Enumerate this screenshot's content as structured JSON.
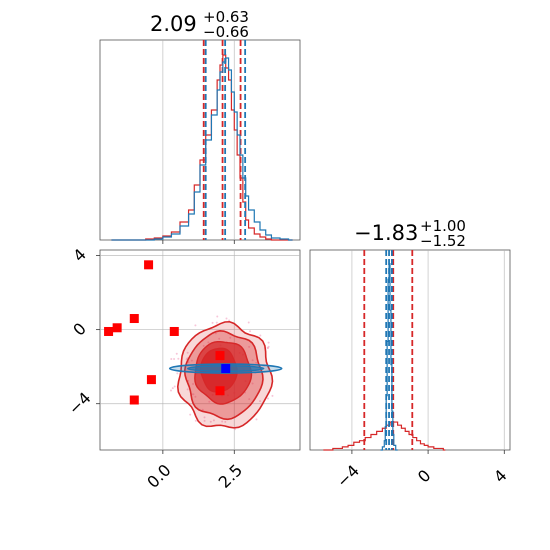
{
  "colors": {
    "red": "#d62728",
    "blue": "#1f77b4",
    "blue_marker": "#0000ff",
    "red_marker": "#ff0000"
  },
  "chart_data": [
    {
      "type": "histogram",
      "panel": "x1-marginal",
      "title_value": "2.09",
      "title_upper": "+0.63",
      "title_lower": "−0.66",
      "xlim": [
        -2.2,
        4.8
      ],
      "series": [
        {
          "name": "",
          "color": "red",
          "quantiles": [
            1.43,
            2.09,
            2.72
          ],
          "x": [
            -1.8,
            -1.5,
            -1.2,
            -0.9,
            -0.6,
            -0.3,
            0.0,
            0.3,
            0.6,
            0.9,
            1.1,
            1.3,
            1.5,
            1.7,
            1.9,
            2.0,
            2.1,
            2.2,
            2.3,
            2.4,
            2.5,
            2.6,
            2.7,
            2.8,
            2.9,
            3.0,
            3.2,
            3.4,
            3.6,
            3.8,
            4.1,
            4.4
          ],
          "values": [
            0,
            0,
            0,
            0,
            1,
            2,
            4,
            8,
            18,
            30,
            55,
            80,
            105,
            130,
            160,
            175,
            185,
            172,
            160,
            130,
            110,
            85,
            62,
            38,
            20,
            12,
            6,
            3,
            1,
            0,
            0,
            0
          ]
        },
        {
          "name": "",
          "color": "blue",
          "quantiles": [
            1.5,
            2.18,
            2.88
          ],
          "x": [
            -1.8,
            -1.5,
            -1.2,
            -0.9,
            -0.6,
            -0.3,
            0.0,
            0.3,
            0.6,
            0.9,
            1.1,
            1.3,
            1.5,
            1.7,
            1.9,
            2.0,
            2.1,
            2.2,
            2.3,
            2.4,
            2.5,
            2.6,
            2.7,
            2.8,
            2.9,
            3.0,
            3.2,
            3.4,
            3.6,
            3.8,
            4.1,
            4.4
          ],
          "values": [
            0,
            0,
            0,
            0,
            0,
            1,
            3,
            6,
            14,
            26,
            48,
            75,
            100,
            125,
            150,
            168,
            178,
            182,
            170,
            148,
            128,
            105,
            85,
            62,
            44,
            30,
            18,
            10,
            5,
            2,
            1,
            0
          ]
        }
      ],
      "xticks": [
        0.0,
        2.5
      ],
      "yticks": []
    },
    {
      "type": "scatter",
      "panel": "x1-x2-joint",
      "xlim": [
        -2.2,
        4.8
      ],
      "ylim": [
        -6.5,
        4.3
      ],
      "xticks": [
        0.0,
        2.5
      ],
      "xtick_labels": [
        "0.0",
        "2.5"
      ],
      "yticks": [
        -4,
        0,
        4
      ],
      "ytick_labels": [
        "−4",
        "0",
        "4"
      ],
      "red_squares": [
        {
          "x": -1.9,
          "y": -0.1
        },
        {
          "x": -1.6,
          "y": 0.1
        },
        {
          "x": -1.0,
          "y": 0.6
        },
        {
          "x": -0.5,
          "y": 3.5
        },
        {
          "x": -0.4,
          "y": -2.7
        },
        {
          "x": -1.0,
          "y": -3.8
        },
        {
          "x": 0.4,
          "y": -0.1
        },
        {
          "x": 2.0,
          "y": -1.4
        },
        {
          "x": 2.0,
          "y": -3.3
        }
      ],
      "blue_square": {
        "x": 2.2,
        "y": -2.1
      },
      "red_contour_center": {
        "x": 2.1,
        "y": -2.4
      },
      "blue_contour_center": {
        "x": 2.2,
        "y": -2.1
      }
    },
    {
      "type": "histogram",
      "panel": "x2-marginal",
      "title_value": "−1.83",
      "title_upper": "+1.00",
      "title_lower": "−1.52",
      "xlim": [
        -6.2,
        4.3
      ],
      "xticks": [
        -4,
        0,
        4
      ],
      "xtick_labels": [
        "−4",
        "0",
        "4"
      ],
      "series": [
        {
          "name": "",
          "color": "red",
          "quantiles": [
            -3.35,
            -1.83,
            -0.83
          ],
          "x": [
            -5.5,
            -5.0,
            -4.5,
            -4.2,
            -3.9,
            -3.6,
            -3.3,
            -3.0,
            -2.7,
            -2.4,
            -2.2,
            -2.0,
            -1.8,
            -1.6,
            -1.4,
            -1.2,
            -1.0,
            -0.8,
            -0.6,
            -0.4,
            -0.2,
            0.0,
            0.3,
            0.8
          ],
          "values": [
            0,
            1,
            2,
            3,
            5,
            6,
            8,
            10,
            12,
            14,
            16,
            18,
            18,
            16,
            14,
            12,
            10,
            8,
            6,
            4,
            3,
            2,
            1,
            0
          ]
        },
        {
          "name": "",
          "color": "blue",
          "quantiles": [
            -2.2,
            -2.05,
            -1.9
          ],
          "x": [
            -2.5,
            -2.4,
            -2.3,
            -2.25,
            -2.2,
            -2.15,
            -2.1,
            -2.05,
            -2.0,
            -1.95,
            -1.9,
            -1.85,
            -1.8,
            -1.7
          ],
          "values": [
            0,
            2,
            6,
            15,
            35,
            70,
            110,
            120,
            90,
            55,
            25,
            10,
            3,
            0
          ]
        }
      ]
    }
  ]
}
